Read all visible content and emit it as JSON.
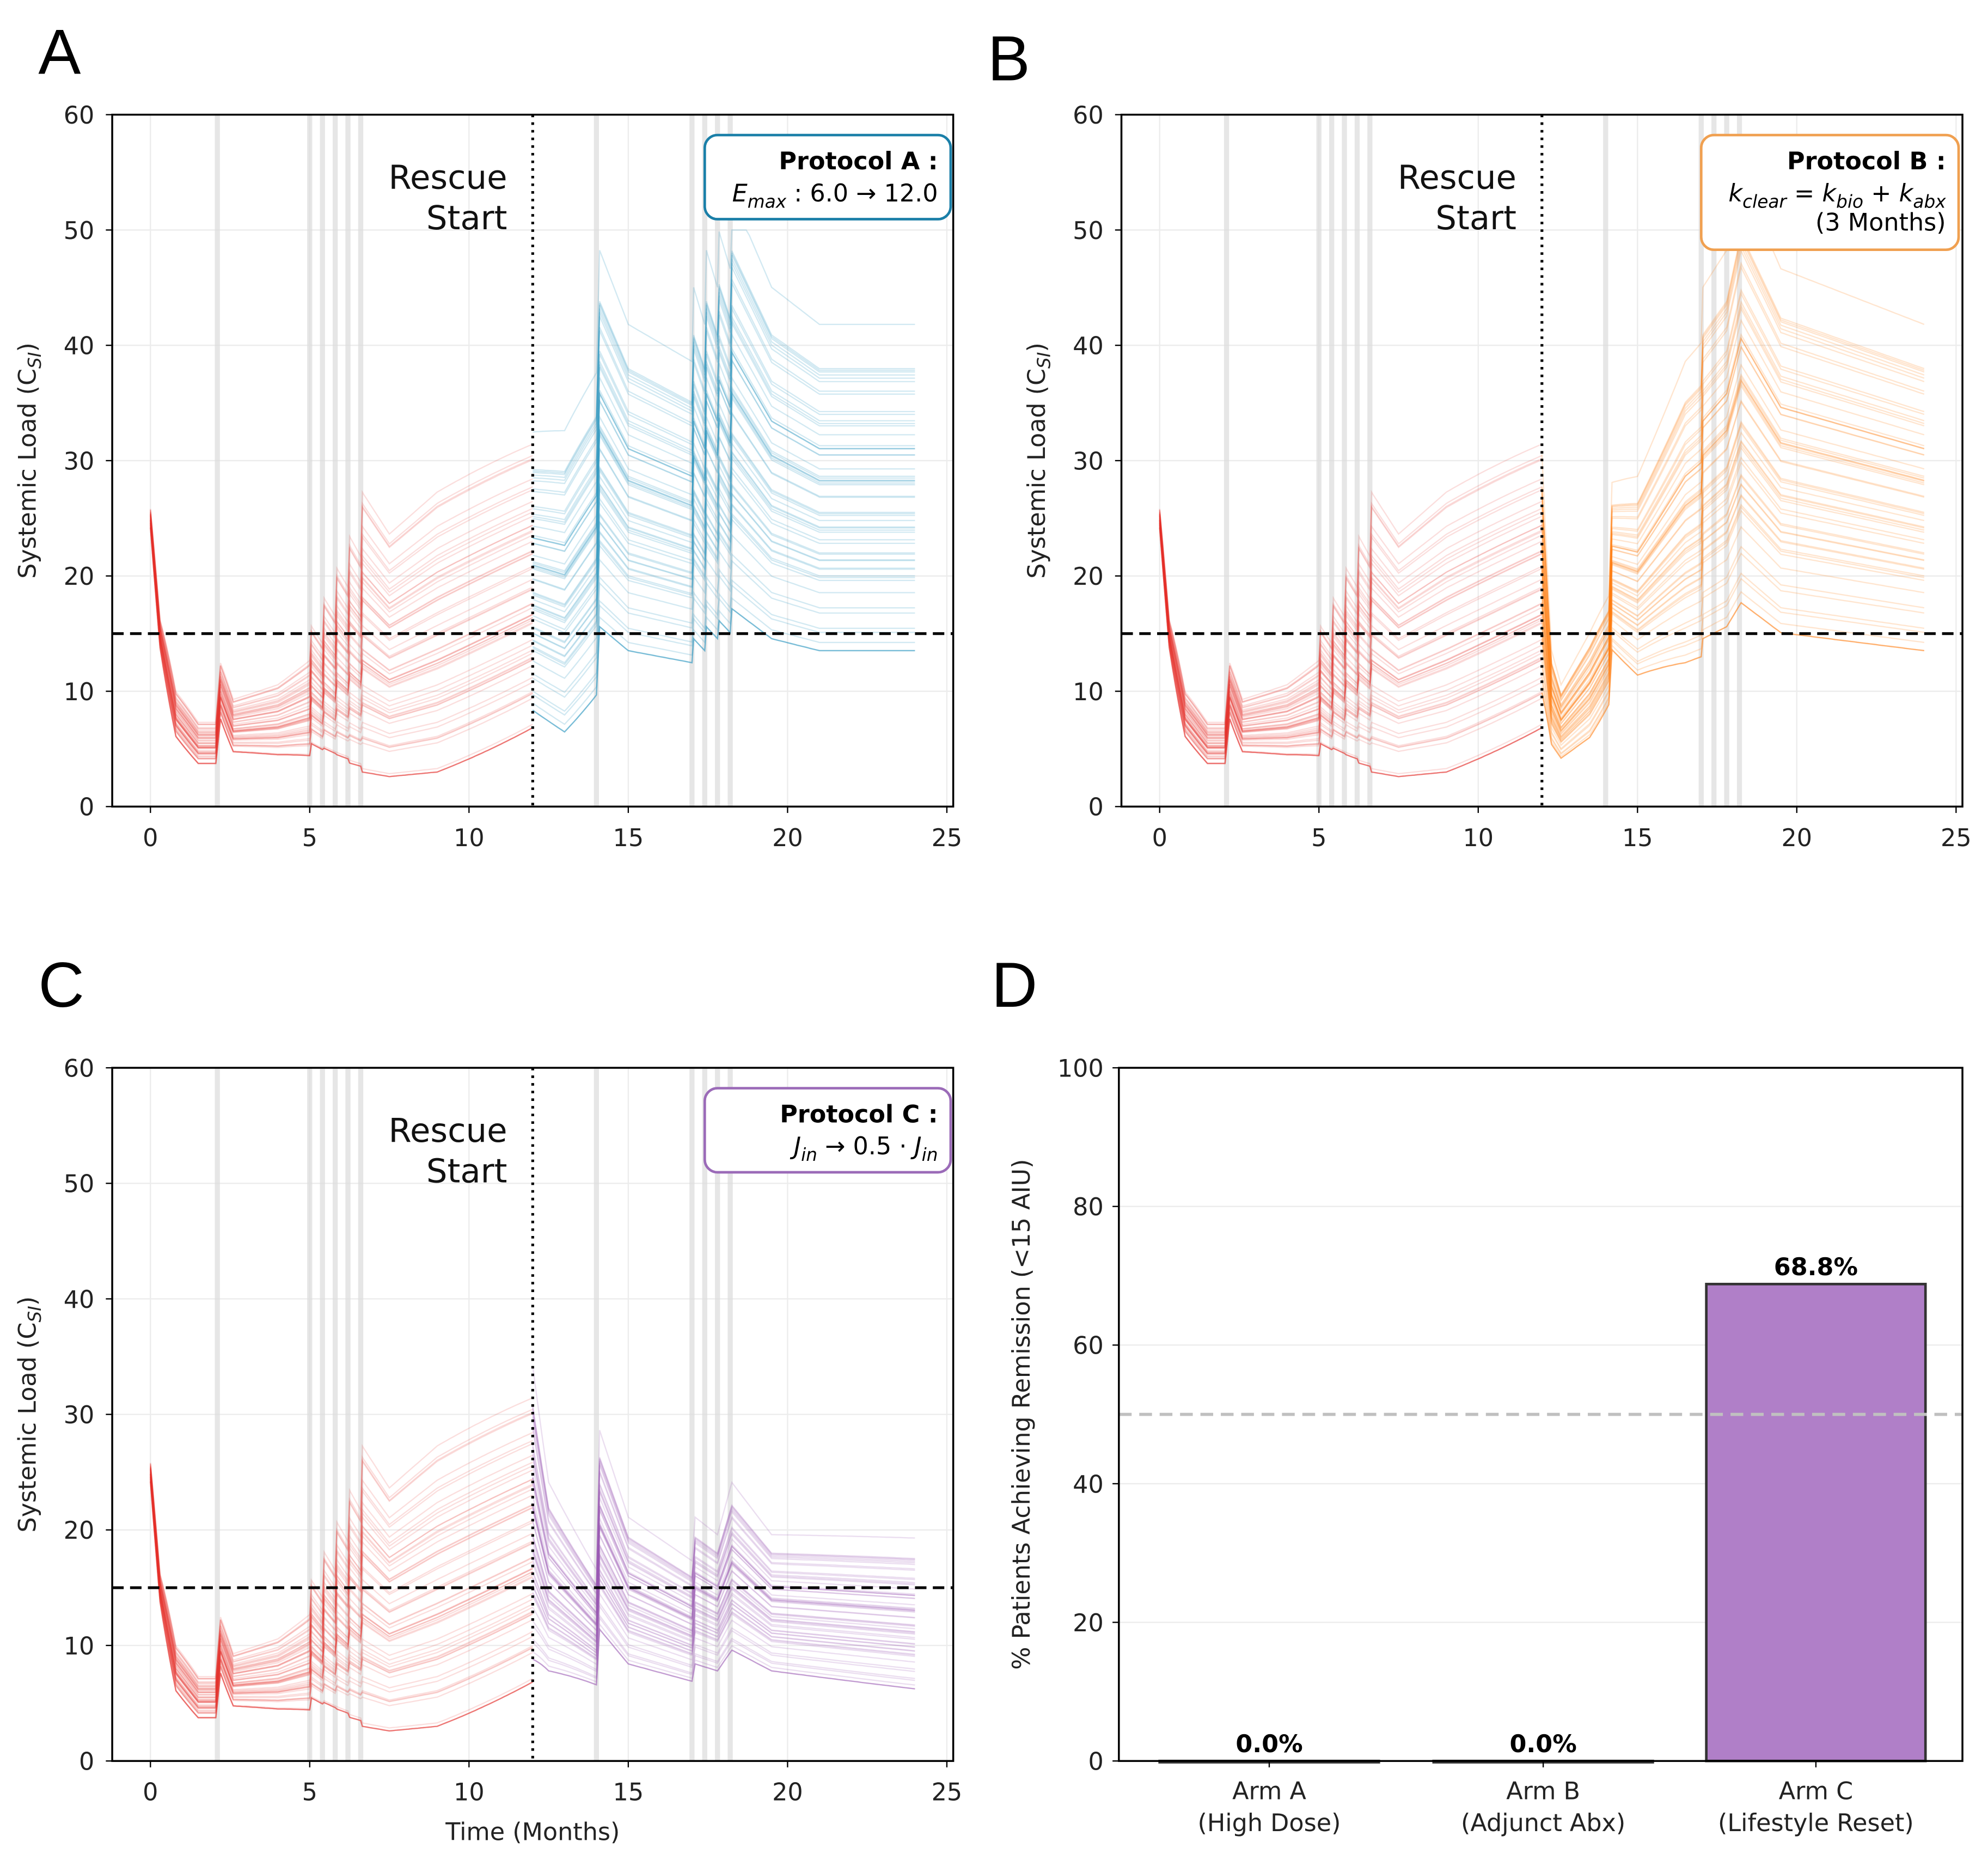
{
  "panels": [
    {
      "letter": "A",
      "ylabel": "Systemic Load (C",
      "ylabel_sub": "SI",
      "ylabel_end": ")",
      "xlabel": "",
      "annotation": [
        "Rescue",
        "Start"
      ],
      "box": {
        "title": "Protocol A :",
        "lines": [
          [
            {
              "t": "E",
              "i": true,
              "sub": "max"
            },
            {
              "t": " : 6.0 → 12.0"
            }
          ]
        ],
        "color": "#1a7fa8"
      },
      "post_color": "#1f8fbf"
    },
    {
      "letter": "B",
      "ylabel": "Systemic Load (C",
      "ylabel_sub": "SI",
      "ylabel_end": ")",
      "xlabel": "",
      "annotation": [
        "Rescue",
        "Start"
      ],
      "box": {
        "title": "Protocol B :",
        "lines": [
          [
            {
              "t": "k",
              "i": true,
              "sub": "clear"
            },
            {
              "t": " = "
            },
            {
              "t": "k",
              "i": true,
              "sub": "bio"
            },
            {
              "t": " + "
            },
            {
              "t": "k",
              "i": true,
              "sub": "abx"
            }
          ],
          [
            {
              "t": "(3 Months)"
            }
          ]
        ],
        "color": "#f0a050"
      },
      "post_color": "#ff7f0e"
    },
    {
      "letter": "C",
      "ylabel": "Systemic Load (C",
      "ylabel_sub": "SI",
      "ylabel_end": ")",
      "xlabel": "Time (Months)",
      "annotation": [
        "Rescue",
        "Start"
      ],
      "box": {
        "title": "Protocol C :",
        "lines": [
          [
            {
              "t": "J",
              "i": true,
              "sub": "in"
            },
            {
              "t": " → 0.5 · "
            },
            {
              "t": "J",
              "i": true,
              "sub": "in"
            }
          ]
        ],
        "color": "#9b6bb8"
      },
      "post_color": "#9b59b6"
    }
  ],
  "chart_data": [
    {
      "panel": "A",
      "type": "line",
      "xlim": [
        -1,
        25
      ],
      "ylim": [
        0,
        60
      ],
      "xticks": [
        0,
        5,
        10,
        15,
        20,
        25
      ],
      "yticks": [
        0,
        10,
        20,
        30,
        40,
        50,
        60
      ],
      "grid": true,
      "threshold": 15,
      "rescue_start": 12,
      "dose_events": [
        2.1,
        5,
        5.4,
        5.8,
        6.2,
        6.6,
        14,
        17,
        17.4,
        17.8,
        18.2
      ],
      "pre_rescue_color": "#e8302a",
      "pre_rescue_median": [
        [
          0,
          25,
          0.02
        ],
        [
          0.3,
          15,
          0.05
        ],
        [
          0.8,
          8,
          0.15
        ],
        [
          1.5,
          5.5,
          0.2
        ],
        [
          2.05,
          5.5,
          0.2
        ],
        [
          2.2,
          10,
          0.15
        ],
        [
          2.6,
          7,
          0.2
        ],
        [
          4,
          7.5,
          0.25
        ],
        [
          5,
          8.5,
          0.3
        ],
        [
          5.05,
          10.5,
          0.3
        ],
        [
          5.4,
          9.5,
          0.3
        ],
        [
          5.45,
          11.5,
          0.35
        ],
        [
          5.8,
          10.5,
          0.35
        ],
        [
          5.85,
          12.5,
          0.4
        ],
        [
          6.2,
          11.5,
          0.4
        ],
        [
          6.25,
          13.5,
          0.45
        ],
        [
          6.6,
          12.5,
          0.45
        ],
        [
          6.65,
          15,
          0.5
        ],
        [
          7.5,
          13,
          0.5
        ],
        [
          9,
          15,
          0.5
        ],
        [
          12,
          19,
          0.4
        ]
      ],
      "post_rescue_median": [
        [
          12,
          19,
          0.35
        ],
        [
          13,
          18,
          0.4
        ],
        [
          14,
          22,
          0.35
        ],
        [
          14.1,
          30,
          0.3
        ],
        [
          15,
          26,
          0.3
        ],
        [
          17,
          24,
          0.3
        ],
        [
          17.05,
          28,
          0.3
        ],
        [
          17.4,
          26,
          0.3
        ],
        [
          17.45,
          30,
          0.3
        ],
        [
          17.8,
          28,
          0.3
        ],
        [
          17.85,
          31,
          0.3
        ],
        [
          18.2,
          29,
          0.3
        ],
        [
          18.25,
          33,
          0.3
        ],
        [
          19.5,
          28,
          0.3
        ],
        [
          21,
          26,
          0.3
        ],
        [
          24,
          26,
          0.3
        ]
      ]
    },
    {
      "panel": "B",
      "type": "line",
      "xlim": [
        -1,
        25
      ],
      "ylim": [
        0,
        60
      ],
      "xticks": [
        0,
        5,
        10,
        15,
        20,
        25
      ],
      "yticks": [
        0,
        10,
        20,
        30,
        40,
        50,
        60
      ],
      "grid": true,
      "threshold": 15,
      "rescue_start": 12,
      "dose_events": [
        2.1,
        5,
        5.4,
        5.8,
        6.2,
        6.6,
        14,
        17,
        17.4,
        17.8,
        18.2
      ],
      "pre_rescue_color": "#e8302a",
      "pre_rescue_median": "same as A",
      "post_rescue_median": [
        [
          12,
          19,
          0.3
        ],
        [
          12.3,
          9,
          0.25
        ],
        [
          12.6,
          7,
          0.25
        ],
        [
          13.5,
          10,
          0.25
        ],
        [
          14.1,
          13,
          0.2
        ],
        [
          14.2,
          20,
          0.2
        ],
        [
          15,
          19,
          0.25
        ],
        [
          16.5,
          24,
          0.3
        ],
        [
          17,
          25,
          0.3
        ],
        [
          17.05,
          28,
          0.3
        ],
        [
          17.8,
          30,
          0.3
        ],
        [
          18.25,
          34,
          0.3
        ],
        [
          19.5,
          29,
          0.3
        ],
        [
          24,
          26,
          0.3
        ]
      ]
    },
    {
      "panel": "C",
      "type": "line",
      "xlim": [
        -1,
        25
      ],
      "ylim": [
        0,
        60
      ],
      "xticks": [
        0,
        5,
        10,
        15,
        20,
        25
      ],
      "yticks": [
        0,
        10,
        20,
        30,
        40,
        50,
        60
      ],
      "grid": true,
      "threshold": 15,
      "rescue_start": 12,
      "dose_events": [
        2.1,
        5,
        5.4,
        5.8,
        6.2,
        6.6,
        14,
        17,
        17.4,
        17.8,
        18.2
      ],
      "pre_rescue_color": "#e8302a",
      "pre_rescue_median": "same as A",
      "post_rescue_median": [
        [
          12,
          20,
          0.35
        ],
        [
          12.5,
          15,
          0.3
        ],
        [
          14,
          11,
          0.25
        ],
        [
          14.1,
          19,
          0.25
        ],
        [
          15,
          14,
          0.25
        ],
        [
          17,
          11.5,
          0.25
        ],
        [
          17.1,
          14,
          0.25
        ],
        [
          17.8,
          13,
          0.25
        ],
        [
          18.25,
          16,
          0.25
        ],
        [
          19.5,
          13,
          0.25
        ],
        [
          24,
          12,
          0.3
        ]
      ]
    },
    {
      "panel": "D",
      "type": "bar",
      "ylabel": "% Patients Achieving Remission (<15 AIU)",
      "categories": [
        [
          "Arm A",
          "(High Dose)"
        ],
        [
          "Arm B",
          "(Adjunct Abx)"
        ],
        [
          "Arm C",
          "(Lifestyle Reset)"
        ]
      ],
      "values": [
        0.0,
        0.0,
        68.8
      ],
      "value_labels": [
        "0.0%",
        "0.0%",
        "68.8%"
      ],
      "ylim": [
        0,
        100
      ],
      "yticks": [
        0,
        20,
        40,
        60,
        80,
        100
      ],
      "reference_line": 50,
      "bar_color": "#b07fc8",
      "edge_color": "#333333"
    }
  ]
}
